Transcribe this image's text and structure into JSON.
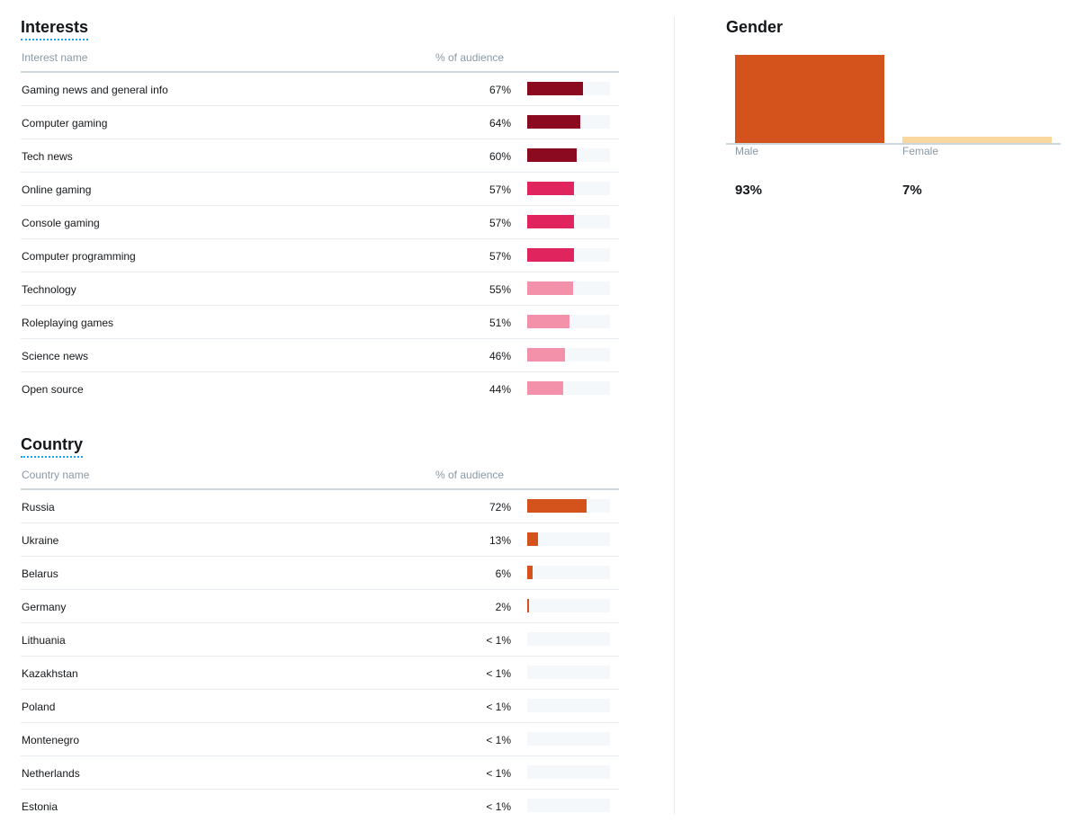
{
  "interests": {
    "title": "Interests",
    "col_name": "Interest name",
    "col_pct": "% of audience",
    "rows": [
      {
        "name": "Gaming news and general info",
        "pct_label": "67%",
        "value": 67,
        "color": "#8b0a20"
      },
      {
        "name": "Computer gaming",
        "pct_label": "64%",
        "value": 64,
        "color": "#8b0a20"
      },
      {
        "name": "Tech news",
        "pct_label": "60%",
        "value": 60,
        "color": "#8b0a20"
      },
      {
        "name": "Online gaming",
        "pct_label": "57%",
        "value": 57,
        "color": "#e0245e"
      },
      {
        "name": "Console gaming",
        "pct_label": "57%",
        "value": 57,
        "color": "#e0245e"
      },
      {
        "name": "Computer programming",
        "pct_label": "57%",
        "value": 57,
        "color": "#e0245e"
      },
      {
        "name": "Technology",
        "pct_label": "55%",
        "value": 55,
        "color": "#f291a9"
      },
      {
        "name": "Roleplaying games",
        "pct_label": "51%",
        "value": 51,
        "color": "#f291a9"
      },
      {
        "name": "Science news",
        "pct_label": "46%",
        "value": 46,
        "color": "#f291a9"
      },
      {
        "name": "Open source",
        "pct_label": "44%",
        "value": 44,
        "color": "#f291a9"
      }
    ]
  },
  "country": {
    "title": "Country",
    "col_name": "Country name",
    "col_pct": "% of audience",
    "rows": [
      {
        "name": "Russia",
        "pct_label": "72%",
        "value": 72,
        "color": "#d4521b"
      },
      {
        "name": "Ukraine",
        "pct_label": "13%",
        "value": 13,
        "color": "#d4521b"
      },
      {
        "name": "Belarus",
        "pct_label": "6%",
        "value": 6,
        "color": "#d4521b"
      },
      {
        "name": "Germany",
        "pct_label": "2%",
        "value": 2,
        "color": "#d4521b"
      },
      {
        "name": "Lithuania",
        "pct_label": "< 1%",
        "value": 0,
        "color": "#d4521b"
      },
      {
        "name": "Kazakhstan",
        "pct_label": "< 1%",
        "value": 0,
        "color": "#d4521b"
      },
      {
        "name": "Poland",
        "pct_label": "< 1%",
        "value": 0,
        "color": "#d4521b"
      },
      {
        "name": "Montenegro",
        "pct_label": "< 1%",
        "value": 0,
        "color": "#d4521b"
      },
      {
        "name": "Netherlands",
        "pct_label": "< 1%",
        "value": 0,
        "color": "#d4521b"
      },
      {
        "name": "Estonia",
        "pct_label": "< 1%",
        "value": 0,
        "color": "#d4521b"
      }
    ]
  },
  "gender": {
    "title": "Gender",
    "items": [
      {
        "label": "Male",
        "pct_label": "93%",
        "value": 93,
        "color": "#d4521b"
      },
      {
        "label": "Female",
        "pct_label": "7%",
        "value": 7,
        "color": "#fad79f"
      }
    ]
  },
  "chart_data": {
    "type": "bar",
    "categories": [
      "Male",
      "Female"
    ],
    "values": [
      93,
      7
    ],
    "title": "Gender",
    "xlabel": "",
    "ylabel": "",
    "ylim": [
      0,
      100
    ]
  }
}
